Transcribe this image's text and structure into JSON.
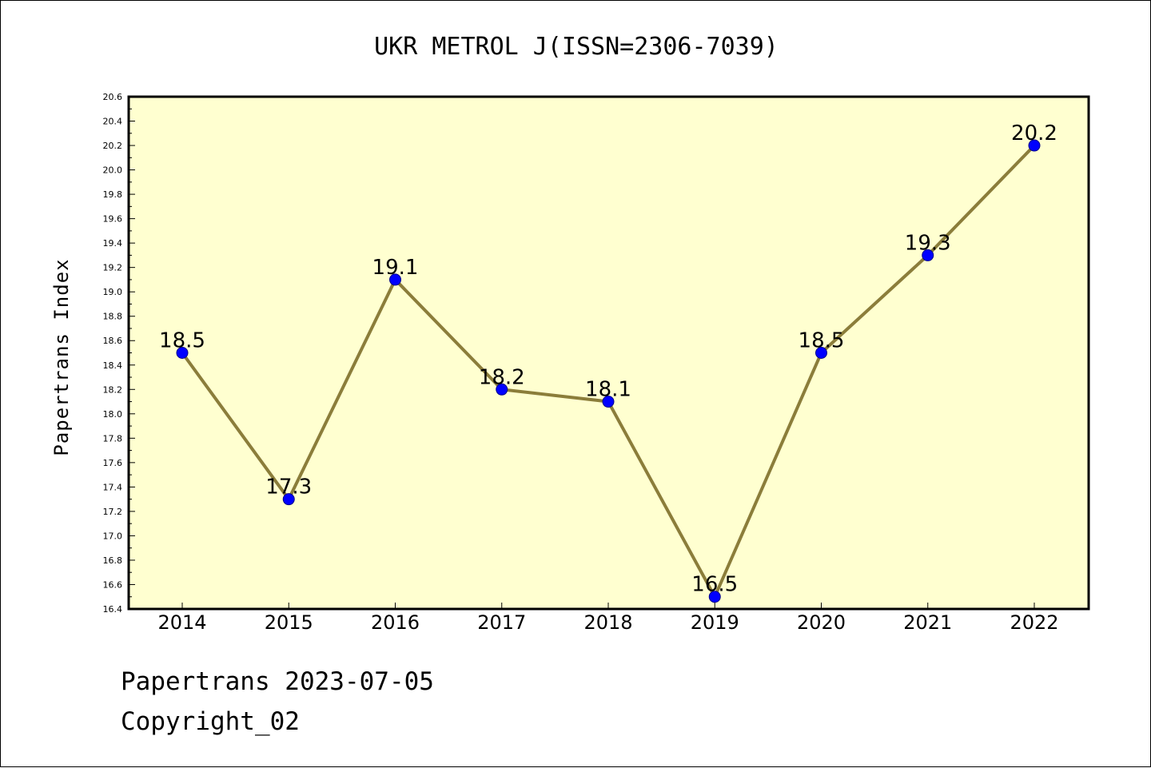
{
  "chart_data": {
    "type": "line",
    "title": "UKR METROL J(ISSN=2306-7039)",
    "xlabel": "",
    "ylabel": "Papertrans Index",
    "categories": [
      "2014",
      "2015",
      "2016",
      "2017",
      "2018",
      "2019",
      "2020",
      "2021",
      "2022"
    ],
    "series": [
      {
        "values": [
          18.5,
          17.3,
          19.1,
          18.2,
          18.1,
          16.5,
          18.5,
          19.3,
          20.2
        ],
        "data_labels": [
          "18.5",
          "17.3",
          "19.1",
          "18.2",
          "18.1",
          "16.5",
          "18.5",
          "19.3",
          "20.2"
        ]
      }
    ],
    "ylim": [
      16.4,
      20.6
    ],
    "yticks": [
      "16.4",
      "16.6",
      "16.8",
      "17.0",
      "17.2",
      "17.4",
      "17.6",
      "17.8",
      "18.0",
      "18.2",
      "18.4",
      "18.6",
      "18.8",
      "19.0",
      "19.2",
      "19.4",
      "19.6",
      "19.8",
      "20.0",
      "20.2",
      "20.4",
      "20.6"
    ],
    "grid": false,
    "colors": {
      "plot_background": "#ffffd0",
      "line": "#8b7d3a",
      "marker": "#0000ff",
      "marker_edge": "#00008b"
    }
  },
  "footer": {
    "date_line": "Papertrans 2023-07-05",
    "copyright_line": "Copyright_02"
  }
}
